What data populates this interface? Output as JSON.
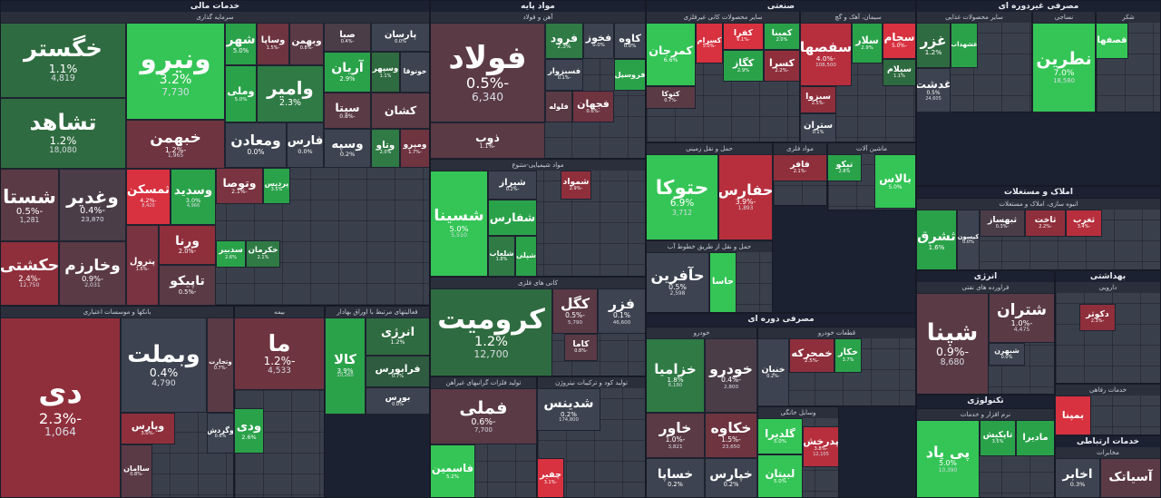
{
  "sectors": [
    {
      "title": "خدمات مالی"
    },
    {
      "title": "مواد پایه"
    },
    {
      "title": "صنعتی"
    },
    {
      "title": "مصرفی دوره ای"
    },
    {
      "title": "مصرفی غیردوره ای"
    },
    {
      "title": "املاک و مستغلات"
    },
    {
      "title": "انرژی"
    },
    {
      "title": "بهداشتی"
    },
    {
      "title": "تکنولوژی"
    },
    {
      "title": "خدمات ارتباطی"
    }
  ],
  "groups": [
    {
      "title": "سرمایه گذاری",
      "tiles": [
        {
          "name": "خگستر",
          "change": "1.1%",
          "volume": "4,819",
          "color": "#2f6b40"
        },
        {
          "name": "تشاهد",
          "change": "1.2%",
          "volume": "18,080",
          "color": "#2f6b40"
        },
        {
          "name": "ونیرو",
          "change": "3.2%",
          "volume": "7,730",
          "color": "#34c556"
        },
        {
          "name": "خبهمن",
          "change": "-1.2%",
          "volume": "1,965",
          "color": "#6e3440"
        },
        {
          "name": "شستا",
          "change": "-0.5%",
          "volume": "1,281",
          "color": "#5a3a45"
        },
        {
          "name": "وغدیر",
          "change": "-0.4%",
          "volume": "23,870",
          "color": "#4a3d48"
        },
        {
          "name": "ثمسکن",
          "change": "-4.2%",
          "volume": "8,420",
          "color": "#d8313f"
        },
        {
          "name": "وسدید",
          "change": "3.0%",
          "volume": "4,966",
          "color": "#2aa24a"
        },
        {
          "name": "حکشتی",
          "change": "-2.4%",
          "volume": "12,750",
          "color": "#8f2f3c"
        },
        {
          "name": "وخارزم",
          "change": "-0.9%",
          "volume": "2,031",
          "color": "#5a3a45"
        },
        {
          "name": "پترول",
          "change": "-1.6%",
          "color": "#7a3340"
        },
        {
          "name": "ورنا",
          "change": "-2.0%",
          "color": "#8f2f3c"
        },
        {
          "name": "تاپیکو",
          "change": "-0.5%",
          "color": "#5a3a45"
        },
        {
          "name": "شهر",
          "change": "5.0%",
          "color": "#2aa24a"
        },
        {
          "name": "وساپا",
          "change": "-1.5%",
          "color": "#6e3440"
        },
        {
          "name": "وبهمن",
          "change": "-0.8%",
          "color": "#5a3a45"
        },
        {
          "name": "صبا",
          "change": "-0.4%",
          "color": "#4a3d48"
        },
        {
          "name": "پارسان",
          "change": "0.0%",
          "color": "#3d4350"
        },
        {
          "name": "وملی",
          "change": "5.0%",
          "color": "#2aa24a"
        },
        {
          "name": "وامیر",
          "change": "2.3%",
          "color": "#2f7a45"
        },
        {
          "name": "آریان",
          "change": "2.9%",
          "color": "#2aa24a"
        },
        {
          "name": "وسپهر",
          "change": "1.1%",
          "color": "#2f6b40"
        },
        {
          "name": "خوتوقا",
          "color": "#3d4350"
        },
        {
          "name": "سیتا",
          "change": "-0.8%",
          "color": "#5a3a45"
        },
        {
          "name": "کشان",
          "color": "#5a3a45"
        },
        {
          "name": "ومعادن",
          "change": "0.0%",
          "color": "#3d4350"
        },
        {
          "name": "فارس",
          "change": "0.0%",
          "color": "#3d4350"
        },
        {
          "name": "وسپه",
          "change": "0.2%",
          "color": "#3d4350"
        },
        {
          "name": "وتاو",
          "change": "2.0%",
          "color": "#2f7a45"
        },
        {
          "name": "ومپرو",
          "change": "-1.7%",
          "color": "#6e3440"
        },
        {
          "name": "وتوصا",
          "change": "-2.1%",
          "color": "#7a3340"
        },
        {
          "name": "پردیس",
          "change": "3.5%",
          "color": "#2aa24a"
        },
        {
          "name": "سدبیر",
          "change": "2.6%",
          "color": "#2aa24a"
        },
        {
          "name": "خکرمان",
          "change": "2.1%",
          "color": "#2f7a45"
        }
      ]
    },
    {
      "title": "بانکها و موسسات اعتباری",
      "tiles": [
        {
          "name": "دی",
          "change": "-2.3%",
          "volume": "1,064",
          "color": "#8f2f3c"
        },
        {
          "name": "وبملت",
          "change": "0.4%",
          "volume": "4,790",
          "color": "#3d4350"
        },
        {
          "name": "وتجارت",
          "change": "-0.7%",
          "color": "#5a3a45"
        },
        {
          "name": "وپارس",
          "change": "-3.0%",
          "color": "#8f2f3c"
        },
        {
          "name": "ساامان",
          "change": "-0.8%",
          "color": "#5a3a45"
        },
        {
          "name": "وگردش",
          "change": "0.6%",
          "color": "#3d4350"
        }
      ]
    },
    {
      "title": "بیمه",
      "tiles": [
        {
          "name": "ما",
          "change": "-1.2%",
          "volume": "4,533",
          "color": "#6e3440"
        },
        {
          "name": "ودی",
          "change": "2.6%",
          "color": "#2aa24a"
        }
      ]
    },
    {
      "title": "فعالیتهای مرتبط با اوراق بهادار",
      "tiles": [
        {
          "name": "کالا",
          "change": "3.9%",
          "volume": "10,260",
          "color": "#2aa24a"
        },
        {
          "name": "انرژی",
          "change": "1.2%",
          "color": "#2f6b40"
        },
        {
          "name": "فرابورس",
          "change": "0.7%",
          "color": "#2f5b40"
        },
        {
          "name": "بورس",
          "change": "0.0%",
          "color": "#3d4350"
        }
      ]
    },
    {
      "title": "آهن و فولاد",
      "tiles": [
        {
          "name": "فولاد",
          "change": "-0.5%",
          "volume": "6,340",
          "color": "#5a3a45"
        },
        {
          "name": "ذوب",
          "change": "-1.1%",
          "color": "#5a3a45"
        },
        {
          "name": "فرود",
          "change": "2.3%",
          "color": "#2f7a45"
        },
        {
          "name": "فخوز",
          "change": "0.0%",
          "color": "#3d4350"
        },
        {
          "name": "کاوه",
          "change": "0.0%",
          "color": "#3d4350"
        },
        {
          "name": "فسبزوار",
          "change": "-0.1%",
          "color": "#3d4350"
        },
        {
          "name": "فروسیل",
          "color": "#2aa24a"
        },
        {
          "name": "فلوله",
          "color": "#5a3a45"
        },
        {
          "name": "فجهان",
          "change": "-0.6%",
          "color": "#6e3440"
        }
      ]
    },
    {
      "title": "مواد شیمیایی-متنوع",
      "tiles": [
        {
          "name": "شسینا",
          "change": "5.0%",
          "volume": "5,510",
          "color": "#34c556"
        },
        {
          "name": "شیراز",
          "change": "-0.2%",
          "color": "#3d4350"
        },
        {
          "name": "شفارس",
          "color": "#2aa24a"
        },
        {
          "name": "شلعاب",
          "change": "1.8%",
          "color": "#2f7a45"
        },
        {
          "name": "شپلی",
          "color": "#2aa24a"
        },
        {
          "name": "شمواد",
          "change": "-2.9%",
          "color": "#8f2f3c"
        }
      ]
    },
    {
      "title": "کانی های فلزی",
      "tiles": [
        {
          "name": "کرومیت",
          "change": "1.2%",
          "volume": "12,700",
          "color": "#2f6b40"
        },
        {
          "name": "کگل",
          "change": "-0.5%",
          "volume": "5,790",
          "color": "#5a3a45"
        },
        {
          "name": "فزر",
          "change": "0.1%",
          "volume": "46,600",
          "color": "#3d4350"
        },
        {
          "name": "کاما",
          "change": "-0.8%",
          "color": "#5a3a45"
        }
      ]
    },
    {
      "title": "تولید فلزات گرانبهای غیرآهن",
      "tiles": [
        {
          "name": "فملی",
          "change": "-0.6%",
          "volume": "7,700",
          "color": "#5a3a45"
        },
        {
          "name": "فاسمین",
          "change": "5.2%",
          "color": "#34c556"
        }
      ]
    },
    {
      "title": "تولید کود و ترکیبات نیتروژن",
      "tiles": [
        {
          "name": "شدینس",
          "change": "0.2%",
          "volume": "174,800",
          "color": "#3d4350"
        },
        {
          "name": "چفیر",
          "change": "-3.1%",
          "color": "#d8313f"
        }
      ]
    },
    {
      "title": "سایر محصولات کانی غیرفلزی",
      "tiles": [
        {
          "name": "کمرجان",
          "change": "6.6%",
          "color": "#34c556"
        },
        {
          "name": "کسرام",
          "change": "-5.0%",
          "color": "#d8313f"
        },
        {
          "name": "کفرا",
          "change": "-6.1%",
          "color": "#d8313f"
        },
        {
          "name": "کمینا",
          "change": "2.0%",
          "color": "#2aa24a"
        },
        {
          "name": "کگاز",
          "change": "2.9%",
          "color": "#2aa24a"
        },
        {
          "name": "کسرا",
          "change": "-2.2%",
          "color": "#8f2f3c"
        },
        {
          "name": "کتوکا",
          "change": "-0.7%",
          "color": "#5a3a45"
        }
      ]
    },
    {
      "title": "سیمان، آهک و گچ",
      "tiles": [
        {
          "name": "سفصها",
          "change": "-4.0%",
          "volume": "108,500",
          "color": "#b72f3d"
        },
        {
          "name": "سجام",
          "change": "-5.0%",
          "color": "#d8313f"
        },
        {
          "name": "سلار",
          "change": "2.9%",
          "color": "#2aa24a"
        },
        {
          "name": "سیلام",
          "change": "1.1%",
          "color": "#2f6b40"
        },
        {
          "name": "سبزوا",
          "change": "-2.5%",
          "color": "#8f2f3c"
        },
        {
          "name": "ستران",
          "change": "0.1%",
          "color": "#3d4350"
        }
      ]
    },
    {
      "title": "حمل و نقل زمینی",
      "tiles": [
        {
          "name": "حتوکا",
          "change": "6.9%",
          "volume": "3,712",
          "color": "#34c556"
        },
        {
          "name": "حفارس",
          "change": "-3.9%",
          "volume": "1,893",
          "color": "#b72f3d"
        }
      ]
    },
    {
      "title": "مواد فلزی",
      "tiles": [
        {
          "name": "فافر",
          "change": "-2.1%",
          "color": "#8f2f3c"
        }
      ]
    },
    {
      "title": "ماشین آلات",
      "tiles": [
        {
          "name": "تیکو",
          "change": "2.8%",
          "color": "#2aa24a"
        },
        {
          "name": "بالاس",
          "change": "5.0%",
          "color": "#34c556"
        }
      ]
    },
    {
      "title": "حمل و نقل از طریق خطوط آب",
      "tiles": [
        {
          "name": "حآفرین",
          "change": "0.5%",
          "volume": "2,598",
          "color": "#3d4350"
        },
        {
          "name": "حاسا",
          "color": "#34c556"
        }
      ]
    },
    {
      "title": "خودرو",
      "tiles": [
        {
          "name": "خزامیا",
          "change": "1.8%",
          "volume": "6,180",
          "color": "#2f7a45"
        },
        {
          "name": "خودرو",
          "change": "-0.4%",
          "volume": "2,800",
          "color": "#4a3d48"
        },
        {
          "name": "خاور",
          "change": "-1.0%",
          "volume": "3,821",
          "color": "#5a3a45"
        },
        {
          "name": "خکاوه",
          "change": "-1.5%",
          "volume": "23,650",
          "color": "#6e3440"
        },
        {
          "name": "خساپا",
          "change": "0.2%",
          "color": "#3d4350"
        },
        {
          "name": "خپارس",
          "change": "0.2%",
          "color": "#3d4350"
        }
      ]
    },
    {
      "title": "قطعات خودرو",
      "tiles": [
        {
          "name": "خنیان",
          "change": "-0.2%",
          "color": "#3d4350"
        },
        {
          "name": "خمحرکه",
          "change": "-2.5%",
          "color": "#8f2f3c"
        },
        {
          "name": "خکار",
          "change": "3.7%",
          "color": "#2aa24a"
        }
      ]
    },
    {
      "title": "وسایل خانگی",
      "tiles": [
        {
          "name": "گلدیرا",
          "change": "5.0%",
          "volume": "7,360",
          "color": "#34c556"
        },
        {
          "name": "لبیتان",
          "change": "5.0%",
          "color": "#34c556"
        },
        {
          "name": "پدرخش",
          "change": "-3.8%",
          "volume": "12,105",
          "color": "#b72f3d"
        }
      ]
    },
    {
      "title": "سایر محصولات غذایی",
      "tiles": [
        {
          "name": "غزر",
          "change": "1.2%",
          "color": "#2f6b40"
        },
        {
          "name": "غشهداب",
          "color": "#2aa24a"
        },
        {
          "name": "غدشت",
          "change": "0.5%",
          "volume": "24,605",
          "color": "#3d4350"
        }
      ]
    },
    {
      "title": "نساجی",
      "tiles": [
        {
          "name": "نطرین",
          "change": "7.0%",
          "volume": "18,580",
          "color": "#34c556"
        }
      ]
    },
    {
      "title": "شکر",
      "tiles": [
        {
          "name": "قصفها",
          "color": "#34c556"
        }
      ]
    },
    {
      "title": "انبوه سازی، املاک و مستغلات",
      "tiles": [
        {
          "name": "ثشرق",
          "change": "1.6%",
          "color": "#2aa24a"
        },
        {
          "name": "کیسون",
          "change": "0.0%",
          "color": "#3d4350"
        },
        {
          "name": "ثبهساز",
          "change": "-0.3%",
          "color": "#4a3d48"
        },
        {
          "name": "ثاخت",
          "change": "-2.2%",
          "color": "#8f2f3c"
        },
        {
          "name": "ثغرب",
          "change": "-3.4%",
          "color": "#b72f3d"
        }
      ]
    },
    {
      "title": "فراورده های نفتی",
      "tiles": [
        {
          "name": "شپنا",
          "change": "-0.9%",
          "volume": "8,680",
          "color": "#5a3a45"
        },
        {
          "name": "شتران",
          "change": "-1.0%",
          "volume": "4,475",
          "color": "#5a3a45"
        },
        {
          "name": "شبهرن",
          "change": "0.0%",
          "color": "#3d4350"
        }
      ]
    },
    {
      "title": "دارویی",
      "tiles": [
        {
          "name": "دکوثر",
          "change": "-2.3%",
          "color": "#8f2f3c"
        }
      ]
    },
    {
      "title": "خدمات رفاهی",
      "tiles": [
        {
          "name": "بمپنا",
          "color": "#d8313f"
        }
      ]
    },
    {
      "title": "نرم افزار و خدمات",
      "tiles": [
        {
          "name": "پی پاد",
          "change": "5.0%",
          "volume": "10,390",
          "color": "#34c556"
        },
        {
          "name": "تاپکیش",
          "change": "3.5%",
          "color": "#2aa24a"
        },
        {
          "name": "مادیرا",
          "color": "#2aa24a"
        }
      ]
    },
    {
      "title": "مخابرات",
      "tiles": [
        {
          "name": "اخابر",
          "change": "0.3%",
          "color": "#3d4350"
        },
        {
          "name": "آسیاتک",
          "color": "#5a3a45"
        }
      ]
    }
  ]
}
